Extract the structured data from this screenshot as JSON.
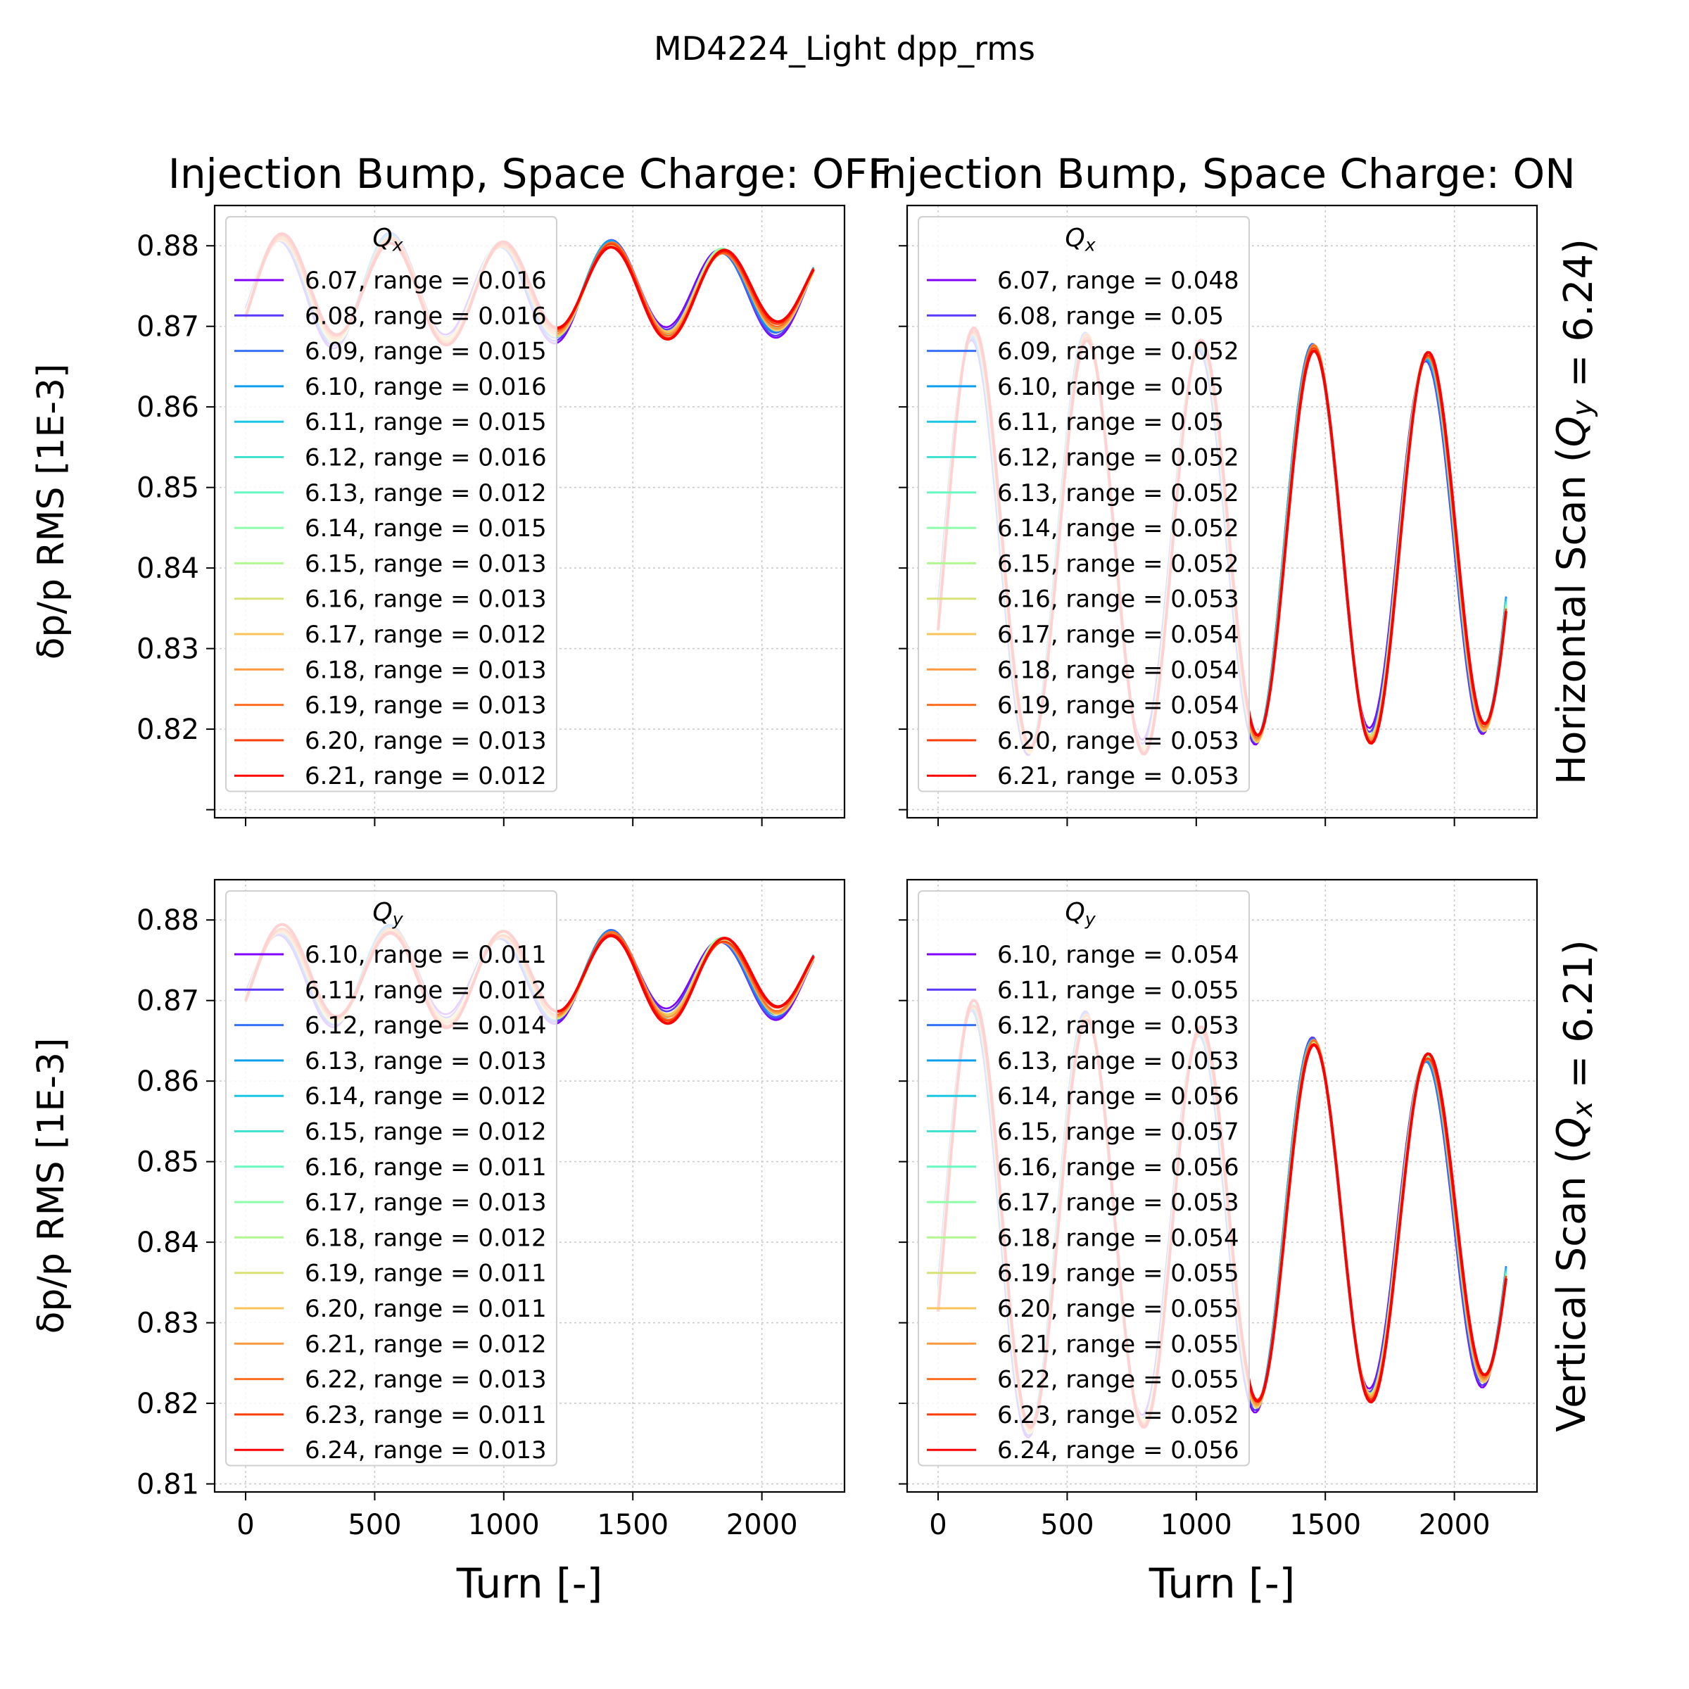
{
  "figure": {
    "suptitle": "MD4224_Light dpp_rms",
    "col_titles": [
      "Injection Bump, Space Charge: OFF",
      "Injection Bump, Space Charge: ON"
    ],
    "row_labels": [
      "Horizontal Scan (Q_y = 6.24)",
      "Vertical Scan (Q_x = 6.21)"
    ],
    "xlabel": "Turn [-]",
    "ylabel": "δp/p RMS [1E-3]",
    "colors": {
      "horizontal": [
        "#8000ff",
        "#5a38fd",
        "#346ff9",
        "#0e9eef",
        "#1ac6e3",
        "#40e2d2",
        "#66f8bf",
        "#8cfea9",
        "#b2f891",
        "#d8e176",
        "#f8c45a",
        "#ff983f",
        "#ff6d21",
        "#ff3e0a",
        "#ff0000"
      ],
      "vertical": [
        "#8000ff",
        "#5a38fd",
        "#346ff9",
        "#0e9eef",
        "#1ac6e3",
        "#40e2d2",
        "#66f8bf",
        "#8cfea9",
        "#b2f891",
        "#d8e176",
        "#f8c45a",
        "#ff983f",
        "#ff6d21",
        "#ff3e0a",
        "#ff0000"
      ]
    }
  },
  "chart_data": [
    {
      "type": "line",
      "title": "Injection Bump, Space Charge: OFF",
      "xlabel": "Turn [-]",
      "ylabel": "δp/p RMS [1E-3]",
      "xlim": [
        -120,
        2320
      ],
      "ylim": [
        0.809,
        0.885
      ],
      "xticks": [
        "0",
        "500",
        "1000",
        "1500",
        "2000"
      ],
      "yticks": [
        "0.88",
        "0.87",
        "0.86",
        "0.85",
        "0.84",
        "0.83",
        "0.82"
      ],
      "grid": true,
      "legend": {
        "title": "Q_x",
        "position": "upper left"
      },
      "shape": {
        "mean": 0.8745,
        "amp_start": 0.0068,
        "amp_end": 0.0048,
        "period": 428,
        "phase": 0.0
      },
      "series": [
        {
          "name": "6.07, range = 0.016",
          "range": 0.016
        },
        {
          "name": "6.08, range = 0.016",
          "range": 0.016
        },
        {
          "name": "6.09, range = 0.015",
          "range": 0.015
        },
        {
          "name": "6.10, range = 0.016",
          "range": 0.016
        },
        {
          "name": "6.11, range = 0.015",
          "range": 0.015
        },
        {
          "name": "6.12, range = 0.016",
          "range": 0.016
        },
        {
          "name": "6.13, range = 0.012",
          "range": 0.012
        },
        {
          "name": "6.14, range = 0.015",
          "range": 0.015
        },
        {
          "name": "6.15, range = 0.013",
          "range": 0.013
        },
        {
          "name": "6.16, range = 0.013",
          "range": 0.013
        },
        {
          "name": "6.17, range = 0.012",
          "range": 0.012
        },
        {
          "name": "6.18, range = 0.013",
          "range": 0.013
        },
        {
          "name": "6.19, range = 0.013",
          "range": 0.013
        },
        {
          "name": "6.20, range = 0.013",
          "range": 0.013
        },
        {
          "name": "6.21, range = 0.012",
          "range": 0.012
        }
      ]
    },
    {
      "type": "line",
      "title": "Injection Bump, Space Charge: ON",
      "xlabel": "Turn [-]",
      "ylabel": "δp/p RMS [1E-3]",
      "xlim": [
        -120,
        2320
      ],
      "ylim": [
        0.809,
        0.885
      ],
      "xticks": [
        "0",
        "500",
        "1000",
        "1500",
        "2000"
      ],
      "yticks": [],
      "grid": true,
      "legend": {
        "title": "Q_x",
        "position": "upper left"
      },
      "shape": {
        "mean": 0.843,
        "amp_start": 0.0265,
        "amp_end": 0.023,
        "period": 440,
        "phase": 0.0
      },
      "series": [
        {
          "name": "6.07, range = 0.048",
          "range": 0.048
        },
        {
          "name": "6.08, range = 0.05",
          "range": 0.05
        },
        {
          "name": "6.09, range = 0.052",
          "range": 0.052
        },
        {
          "name": "6.10, range = 0.05",
          "range": 0.05
        },
        {
          "name": "6.11, range = 0.05",
          "range": 0.05
        },
        {
          "name": "6.12, range = 0.052",
          "range": 0.052
        },
        {
          "name": "6.13, range = 0.052",
          "range": 0.052
        },
        {
          "name": "6.14, range = 0.052",
          "range": 0.052
        },
        {
          "name": "6.15, range = 0.052",
          "range": 0.052
        },
        {
          "name": "6.16, range = 0.053",
          "range": 0.053
        },
        {
          "name": "6.17, range = 0.054",
          "range": 0.054
        },
        {
          "name": "6.18, range = 0.054",
          "range": 0.054
        },
        {
          "name": "6.19, range = 0.054",
          "range": 0.054
        },
        {
          "name": "6.20, range = 0.053",
          "range": 0.053
        },
        {
          "name": "6.21, range = 0.053",
          "range": 0.053
        }
      ]
    },
    {
      "type": "line",
      "title": "",
      "xlabel": "Turn [-]",
      "ylabel": "δp/p RMS [1E-3]",
      "xlim": [
        -120,
        2320
      ],
      "ylim": [
        0.809,
        0.885
      ],
      "xticks": [
        "0",
        "500",
        "1000",
        "1500",
        "2000"
      ],
      "yticks": [
        "0.88",
        "0.87",
        "0.86",
        "0.85",
        "0.84",
        "0.83",
        "0.82",
        "0.81"
      ],
      "grid": true,
      "legend": {
        "title": "Q_y",
        "position": "upper left"
      },
      "shape": {
        "mean": 0.873,
        "amp_start": 0.006,
        "amp_end": 0.0045,
        "period": 428,
        "phase": 0.0
      },
      "series": [
        {
          "name": "6.10, range = 0.011",
          "range": 0.011
        },
        {
          "name": "6.11, range = 0.012",
          "range": 0.012
        },
        {
          "name": "6.12, range = 0.014",
          "range": 0.014
        },
        {
          "name": "6.13, range = 0.013",
          "range": 0.013
        },
        {
          "name": "6.14, range = 0.012",
          "range": 0.012
        },
        {
          "name": "6.15, range = 0.012",
          "range": 0.012
        },
        {
          "name": "6.16, range = 0.011",
          "range": 0.011
        },
        {
          "name": "6.17, range = 0.013",
          "range": 0.013
        },
        {
          "name": "6.18, range = 0.012",
          "range": 0.012
        },
        {
          "name": "6.19, range = 0.011",
          "range": 0.011
        },
        {
          "name": "6.20, range = 0.011",
          "range": 0.011
        },
        {
          "name": "6.21, range = 0.012",
          "range": 0.012
        },
        {
          "name": "6.22, range = 0.013",
          "range": 0.013
        },
        {
          "name": "6.23, range = 0.011",
          "range": 0.011
        },
        {
          "name": "6.24, range = 0.013",
          "range": 0.013
        }
      ]
    },
    {
      "type": "line",
      "title": "",
      "xlabel": "Turn [-]",
      "ylabel": "δp/p RMS [1E-3]",
      "xlim": [
        -120,
        2320
      ],
      "ylim": [
        0.809,
        0.885
      ],
      "xticks": [
        "0",
        "500",
        "1000",
        "1500",
        "2000"
      ],
      "yticks": [],
      "grid": true,
      "legend": {
        "title": "Q_y",
        "position": "upper left"
      },
      "shape": {
        "mean": 0.8425,
        "amp_start": 0.0275,
        "amp_end": 0.0195,
        "period": 440,
        "phase": 0.0
      },
      "series": [
        {
          "name": "6.10, range = 0.054",
          "range": 0.054
        },
        {
          "name": "6.11, range = 0.055",
          "range": 0.055
        },
        {
          "name": "6.12, range = 0.053",
          "range": 0.053
        },
        {
          "name": "6.13, range = 0.053",
          "range": 0.053
        },
        {
          "name": "6.14, range = 0.056",
          "range": 0.056
        },
        {
          "name": "6.15, range = 0.057",
          "range": 0.057
        },
        {
          "name": "6.16, range = 0.056",
          "range": 0.056
        },
        {
          "name": "6.17, range = 0.053",
          "range": 0.053
        },
        {
          "name": "6.18, range = 0.054",
          "range": 0.054
        },
        {
          "name": "6.19, range = 0.055",
          "range": 0.055
        },
        {
          "name": "6.20, range = 0.055",
          "range": 0.055
        },
        {
          "name": "6.21, range = 0.055",
          "range": 0.055
        },
        {
          "name": "6.22, range = 0.055",
          "range": 0.055
        },
        {
          "name": "6.23, range = 0.052",
          "range": 0.052
        },
        {
          "name": "6.24, range = 0.056",
          "range": 0.056
        }
      ]
    }
  ]
}
